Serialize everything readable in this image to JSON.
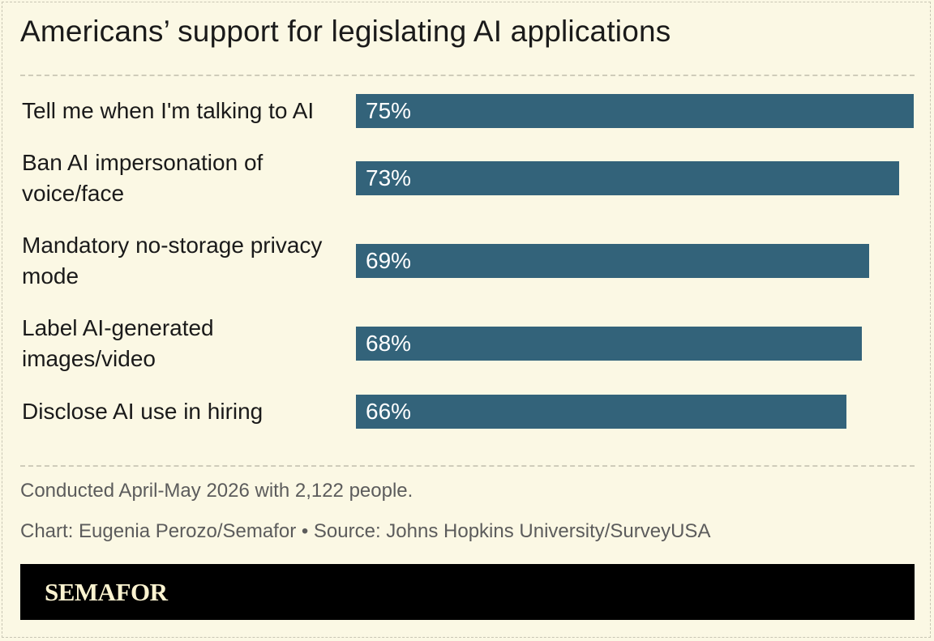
{
  "title": "Americans’ support for legislating AI applications",
  "chart_data": {
    "type": "bar",
    "orientation": "horizontal",
    "categories": [
      "Tell me when I'm talking to AI",
      "Ban AI impersonation of voice/face",
      "Mandatory no-storage privacy mode",
      "Label AI-generated images/video",
      "Disclose AI use in hiring"
    ],
    "values": [
      75,
      73,
      69,
      68,
      66
    ],
    "value_labels": [
      "75%",
      "73%",
      "69%",
      "68%",
      "66%"
    ],
    "unit": "%",
    "xlim": [
      0,
      75
    ],
    "bar_color": "#33637a",
    "grid": false
  },
  "notes": {
    "survey": "Conducted April-May 2026 with 2,122 people.",
    "credit": "Chart: Eugenia Perozo/Semafor • Source: Johns Hopkins University/SurveyUSA"
  },
  "footer": {
    "logo": "SEMAFOR"
  },
  "colors": {
    "background": "#fbf8e4",
    "bar": "#33637a",
    "footer": "#000000"
  }
}
